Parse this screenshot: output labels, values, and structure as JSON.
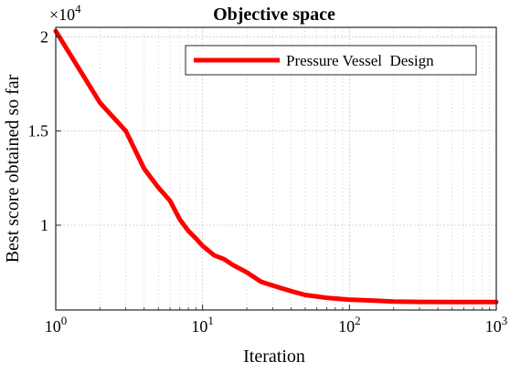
{
  "chart_data": {
    "type": "line",
    "title": "Objective space",
    "xlabel": "Iteration",
    "ylabel": "Best score obtained so far",
    "x_scale": "log",
    "xlim": [
      1,
      1000
    ],
    "ylim": [
      5500,
      20500
    ],
    "y_multiplier": "×10",
    "y_multiplier_exponent": "4",
    "x_ticks": [
      1,
      10,
      100,
      1000
    ],
    "x_tick_labels": [
      {
        "base": "10",
        "exp": "0"
      },
      {
        "base": "10",
        "exp": "1"
      },
      {
        "base": "10",
        "exp": "2"
      },
      {
        "base": "10",
        "exp": "3"
      }
    ],
    "y_ticks": [
      10000,
      15000,
      20000
    ],
    "y_tick_labels": [
      "1",
      "1.5",
      "2"
    ],
    "grid": true,
    "legend_position": "top-right",
    "series": [
      {
        "name": "Pressure Vessel  Design",
        "color": "#ff0000",
        "x": [
          1,
          2,
          3,
          4,
          5,
          6,
          7,
          8,
          9,
          10,
          12,
          14,
          16,
          20,
          25,
          30,
          40,
          50,
          70,
          100,
          150,
          200,
          300,
          500,
          700,
          1000
        ],
        "y": [
          20300,
          16500,
          15000,
          13000,
          12000,
          11300,
          10300,
          9700,
          9300,
          8900,
          8400,
          8200,
          7900,
          7500,
          7000,
          6800,
          6500,
          6300,
          6150,
          6050,
          6000,
          5950,
          5930,
          5920,
          5920,
          5920
        ]
      }
    ]
  }
}
